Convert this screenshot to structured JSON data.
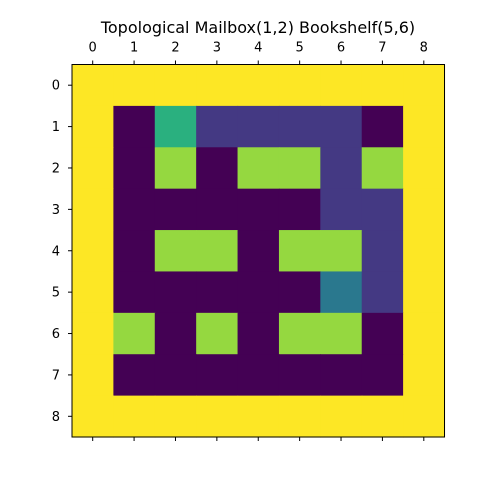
{
  "chart_data": {
    "type": "heatmap",
    "title": "Topological Mailbox(1,2) Bookshelf(5,6)",
    "x_ticks": [
      "0",
      "1",
      "2",
      "3",
      "4",
      "5",
      "6",
      "7",
      "8"
    ],
    "y_ticks": [
      "0",
      "1",
      "2",
      "3",
      "4",
      "5",
      "6",
      "7",
      "8"
    ],
    "x_tick_position": "top",
    "grid": false,
    "colormap": "viridis",
    "palette": {
      "0": "#440154",
      "1": "#443983",
      "2": "#2a788e",
      "3": "#2ab07f",
      "4": "#95d840",
      "5": "#fde725"
    },
    "grid_values": [
      [
        5,
        5,
        5,
        5,
        5,
        5,
        5,
        5,
        5
      ],
      [
        5,
        0,
        3,
        1,
        1,
        1,
        1,
        0,
        5
      ],
      [
        5,
        0,
        4,
        0,
        4,
        4,
        1,
        4,
        5
      ],
      [
        5,
        0,
        0,
        0,
        0,
        0,
        1,
        1,
        5
      ],
      [
        5,
        0,
        4,
        4,
        0,
        4,
        4,
        1,
        5
      ],
      [
        5,
        0,
        0,
        0,
        0,
        0,
        2,
        1,
        5
      ],
      [
        5,
        4,
        0,
        4,
        0,
        4,
        4,
        0,
        5
      ],
      [
        5,
        0,
        0,
        0,
        0,
        0,
        0,
        0,
        5
      ],
      [
        5,
        5,
        5,
        5,
        5,
        5,
        5,
        5,
        5
      ]
    ]
  }
}
